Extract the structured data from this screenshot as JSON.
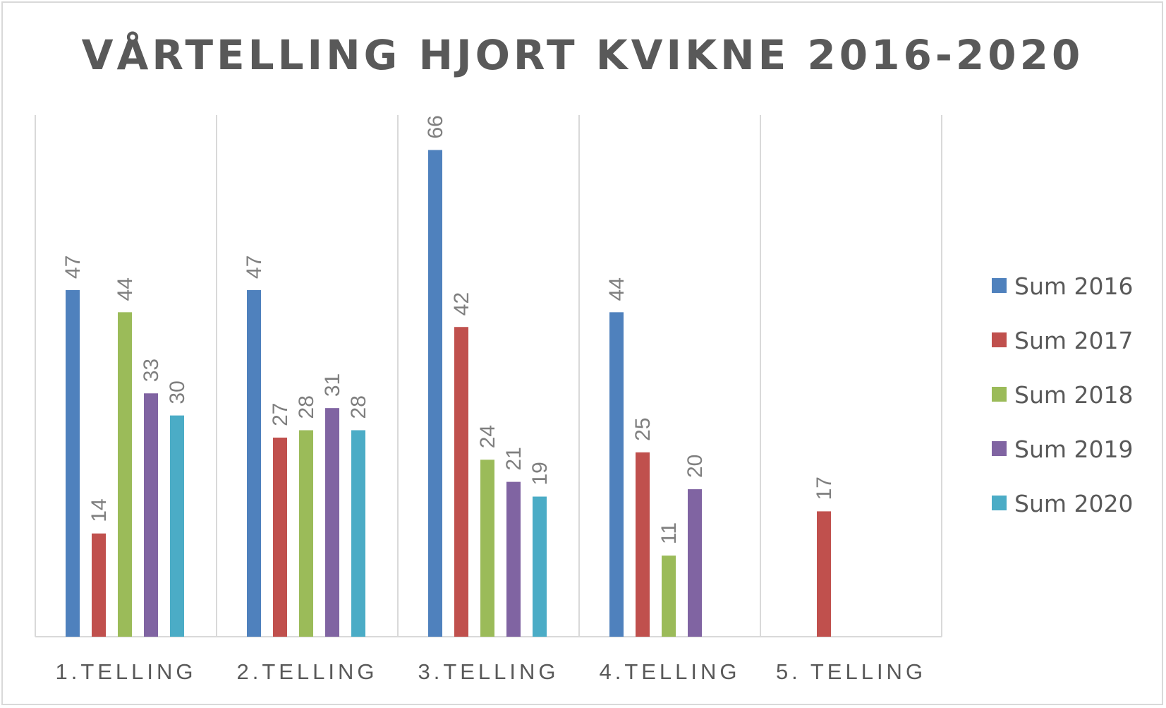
{
  "chart_data": {
    "type": "bar",
    "title": "VÅRTELLING HJORT KVIKNE 2016-2020",
    "categories": [
      "1.TELLING",
      "2.TELLING",
      "3.TELLING",
      "4.TELLING",
      "5. TELLING"
    ],
    "series": [
      {
        "name": "Sum 2016",
        "color": "#4f81bd",
        "values": [
          47,
          47,
          66,
          44,
          null
        ]
      },
      {
        "name": "Sum 2017",
        "color": "#c0504d",
        "values": [
          14,
          27,
          42,
          25,
          17
        ]
      },
      {
        "name": "Sum 2018",
        "color": "#9bbb59",
        "values": [
          44,
          28,
          24,
          11,
          null
        ]
      },
      {
        "name": "Sum 2019",
        "color": "#8064a2",
        "values": [
          33,
          31,
          21,
          20,
          null
        ]
      },
      {
        "name": "Sum 2020",
        "color": "#4bacc6",
        "values": [
          30,
          28,
          19,
          null,
          null
        ]
      }
    ],
    "ylim": [
      0,
      70
    ],
    "gridlines": "vertical category separators",
    "data_labels": true,
    "legend": "right"
  }
}
